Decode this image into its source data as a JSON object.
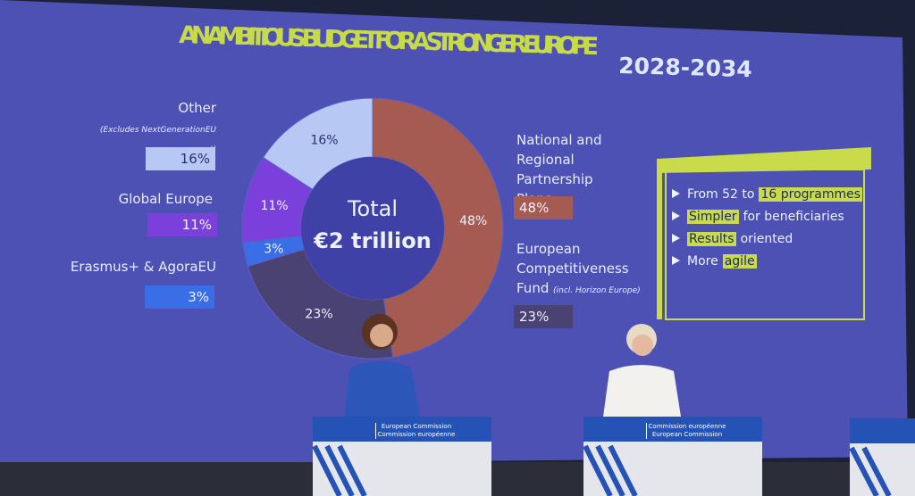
{
  "chart_data": {
    "type": "donut",
    "title": "AN AMBITIOUS BUDGET FOR A STRONGER EUROPE",
    "subtitle": "2028-2034",
    "center_text": [
      "Total",
      "€2 trillion"
    ],
    "categories": [
      "National and Regional Partnership Plans",
      "European Competitiveness Fund",
      "Erasmus+ & AgoraEU",
      "Global Europe",
      "Other"
    ],
    "values": [
      48,
      23,
      3,
      11,
      16
    ],
    "value_labels": [
      "48%",
      "23%",
      "3%",
      "11%",
      "16%"
    ],
    "colors": [
      "#a65b52",
      "#4a4272",
      "#3a6ee6",
      "#7b40dc",
      "#b8c8f4"
    ],
    "annotations": [
      "(Excludes NextGenerationEU repayment)",
      "(incl. Horizon Europe)"
    ]
  },
  "key_points": [
    [
      {
        "text": "From 52 to"
      },
      {
        "text": "16 programmes",
        "highlight": true
      }
    ],
    [
      {
        "text": "Simpler",
        "highlight": true
      },
      {
        "text": "for beneficiaries"
      }
    ],
    [
      {
        "text": "Results",
        "highlight": true
      },
      {
        "text": "oriented"
      }
    ],
    [
      {
        "text": "More"
      },
      {
        "text": "agile",
        "highlight": true
      }
    ]
  ],
  "podiums": [
    [
      "European Commission",
      "Commission européenne"
    ],
    [
      "Commission européenne",
      "European Commission"
    ]
  ]
}
